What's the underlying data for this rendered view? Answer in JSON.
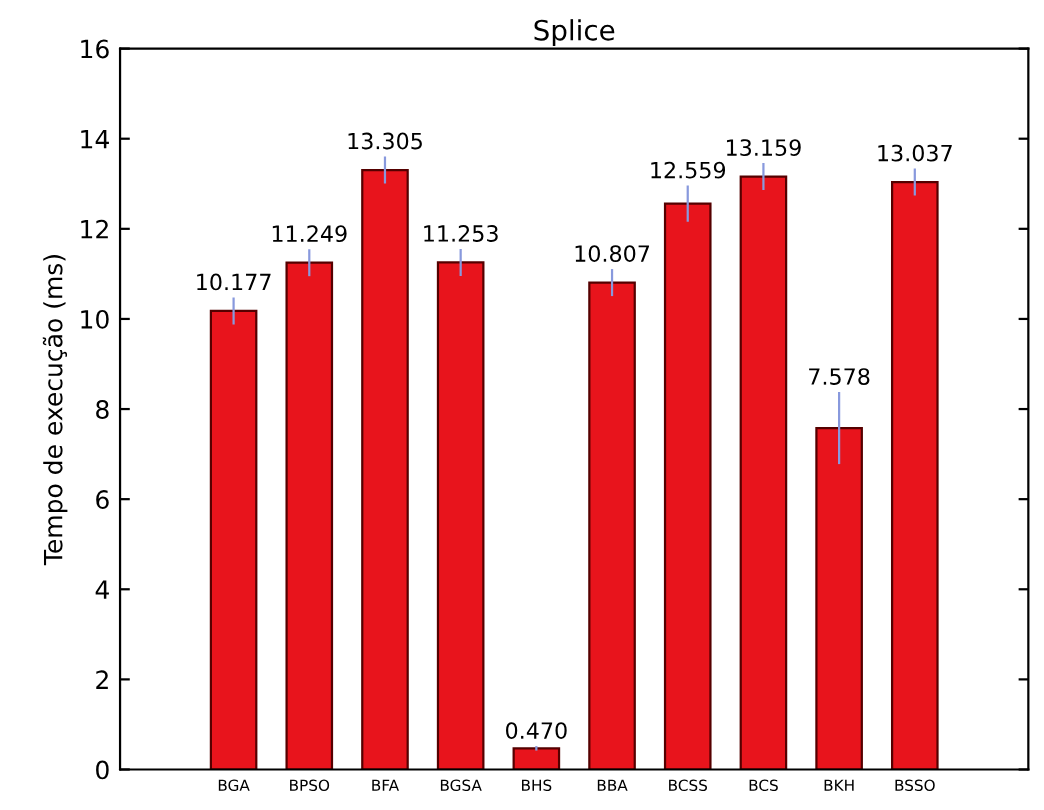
{
  "chart_data": {
    "type": "bar",
    "title": "Splice",
    "ylabel": "Tempo de execução (ms)",
    "categories": [
      "BGA",
      "BPSO",
      "BFA",
      "BGSA",
      "BHS",
      "BBA",
      "BCSS",
      "BCS",
      "BKH",
      "BSSO"
    ],
    "values": [
      10.177,
      11.249,
      13.305,
      11.253,
      0.47,
      10.807,
      12.559,
      13.159,
      7.578,
      13.037
    ],
    "value_labels": [
      "10.177",
      "11.249",
      "13.305",
      "11.253",
      "0.470",
      "10.807",
      "12.559",
      "13.159",
      "7.578",
      "13.037"
    ],
    "errors": [
      0.3,
      0.3,
      0.3,
      0.3,
      0.05,
      0.3,
      0.4,
      0.3,
      0.8,
      0.3
    ],
    "color": "#e8141c",
    "ylim": [
      0,
      16
    ],
    "yticks": [
      0,
      2,
      4,
      6,
      8,
      10,
      12,
      14,
      16
    ],
    "grid": false
  }
}
